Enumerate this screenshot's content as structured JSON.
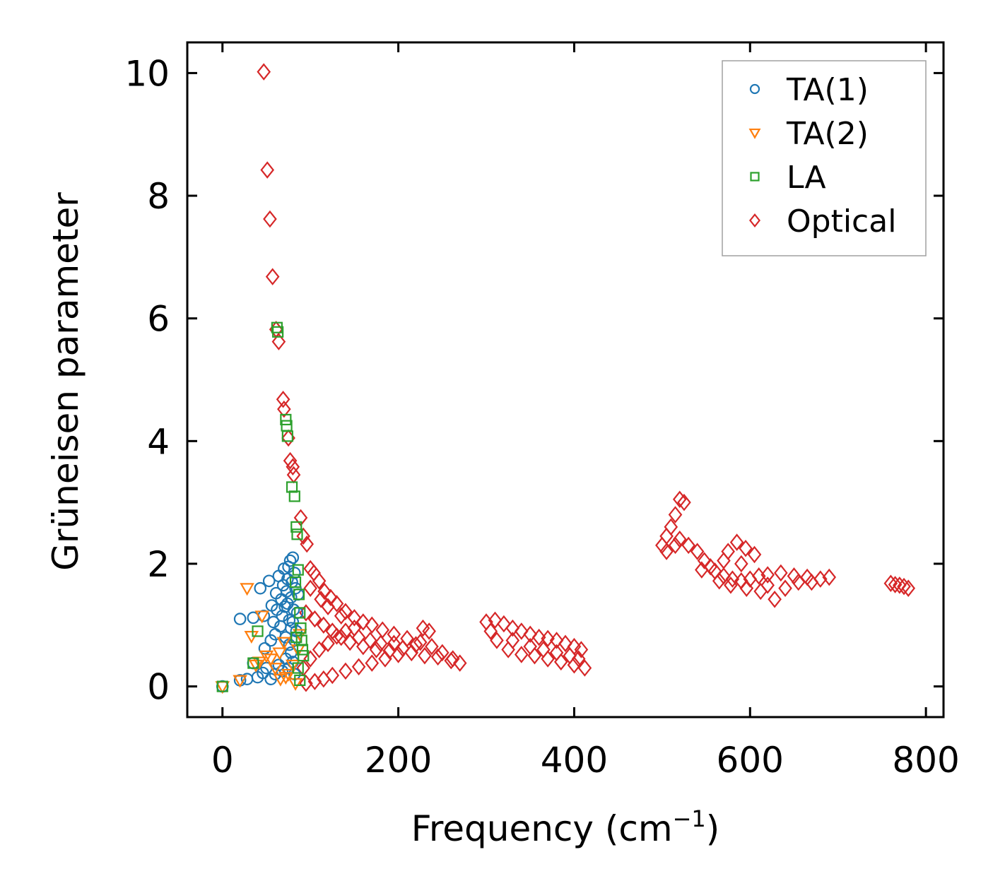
{
  "chart_data": {
    "type": "scatter",
    "title": "",
    "xlabel": "Frequency (cm",
    "xlabel_sup": "−1",
    "xlabel_close": ")",
    "ylabel": "Grüneisen parameter",
    "xlim": [
      -40,
      820
    ],
    "ylim": [
      -0.5,
      10.5
    ],
    "xticks": [
      0,
      200,
      400,
      600,
      800
    ],
    "yticks": [
      0,
      2,
      4,
      6,
      8,
      10
    ],
    "xtick_labels": [
      "0",
      "200",
      "400",
      "600",
      "800"
    ],
    "ytick_labels": [
      "0",
      "2",
      "4",
      "6",
      "8",
      "10"
    ],
    "grid": false,
    "legend_position": "top-right",
    "series": [
      {
        "name": "TA(1)",
        "marker": "circle",
        "color": "#1f77b4",
        "points": [
          [
            0,
            0
          ],
          [
            20,
            0.1
          ],
          [
            28,
            0.12
          ],
          [
            35,
            0.38
          ],
          [
            40,
            0.15
          ],
          [
            46,
            0.22
          ],
          [
            50,
            0.3
          ],
          [
            55,
            0.12
          ],
          [
            60,
            0.2
          ],
          [
            64,
            0.35
          ],
          [
            68,
            0.25
          ],
          [
            72,
            0.45
          ],
          [
            75,
            0.3
          ],
          [
            78,
            0.55
          ],
          [
            80,
            0.4
          ],
          [
            82,
            0.2
          ],
          [
            20,
            1.1
          ],
          [
            35,
            1.12
          ],
          [
            43,
            1.6
          ],
          [
            47,
            1.15
          ],
          [
            48,
            0.62
          ],
          [
            53,
            1.72
          ],
          [
            55,
            0.75
          ],
          [
            56,
            1.32
          ],
          [
            58,
            1.05
          ],
          [
            60,
            0.85
          ],
          [
            61,
            1.52
          ],
          [
            62,
            1.25
          ],
          [
            64,
            1.8
          ],
          [
            66,
            0.98
          ],
          [
            67,
            1.42
          ],
          [
            68,
            1.15
          ],
          [
            69,
            1.65
          ],
          [
            70,
            1.92
          ],
          [
            71,
            1.3
          ],
          [
            72,
            0.8
          ],
          [
            73,
            1.55
          ],
          [
            74,
            1.75
          ],
          [
            75,
            1.95
          ],
          [
            76,
            1.08
          ],
          [
            77,
            2.05
          ],
          [
            78,
            1.45
          ],
          [
            79,
            1.7
          ],
          [
            80,
            2.1
          ],
          [
            81,
            1.25
          ],
          [
            82,
            1.85
          ],
          [
            83,
            1.6
          ],
          [
            84,
            0.9
          ],
          [
            78,
            0.95
          ],
          [
            76,
            0.68
          ],
          [
            82,
            0.75
          ],
          [
            85,
            1.2
          ],
          [
            80,
            1.05
          ],
          [
            74,
            1.35
          ],
          [
            86,
            1.5
          ]
        ]
      },
      {
        "name": "TA(2)",
        "marker": "triangle-down",
        "color": "#ff7f0e",
        "points": [
          [
            0,
            0
          ],
          [
            20,
            0.1
          ],
          [
            28,
            1.6
          ],
          [
            33,
            0.82
          ],
          [
            38,
            0.35
          ],
          [
            42,
            0.4
          ],
          [
            45,
            1.15
          ],
          [
            50,
            0.5
          ],
          [
            55,
            0.45
          ],
          [
            60,
            0.3
          ],
          [
            65,
            0.55
          ],
          [
            70,
            0.72
          ],
          [
            75,
            0.2
          ],
          [
            80,
            0.35
          ],
          [
            83,
            0.05
          ],
          [
            86,
            0.6
          ],
          [
            88,
            0.85
          ],
          [
            72,
            0.15
          ],
          [
            66,
            0.12
          ]
        ]
      },
      {
        "name": "LA",
        "marker": "square",
        "color": "#2ca02c",
        "points": [
          [
            0,
            0
          ],
          [
            35,
            0.38
          ],
          [
            40,
            0.9
          ],
          [
            62,
            5.85
          ],
          [
            63,
            5.78
          ],
          [
            72,
            4.35
          ],
          [
            73,
            4.25
          ],
          [
            74,
            4.08
          ],
          [
            79,
            3.25
          ],
          [
            82,
            3.1
          ],
          [
            84,
            2.6
          ],
          [
            85,
            2.48
          ],
          [
            86,
            1.9
          ],
          [
            87,
            1.5
          ],
          [
            88,
            1.2
          ],
          [
            89,
            0.95
          ],
          [
            90,
            0.75
          ],
          [
            91,
            0.6
          ],
          [
            92,
            0.5
          ],
          [
            86,
            0.3
          ],
          [
            88,
            0.1
          ],
          [
            84,
            0.8
          ],
          [
            83,
            1.7
          ]
        ]
      },
      {
        "name": "Optical",
        "marker": "diamond",
        "color": "#d62728",
        "points": [
          [
            47,
            10.02
          ],
          [
            51,
            8.42
          ],
          [
            54,
            7.62
          ],
          [
            57,
            6.68
          ],
          [
            61,
            5.82
          ],
          [
            64,
            5.62
          ],
          [
            69,
            4.68
          ],
          [
            70,
            4.52
          ],
          [
            75,
            4.05
          ],
          [
            77,
            3.68
          ],
          [
            80,
            3.58
          ],
          [
            81,
            3.45
          ],
          [
            89,
            2.75
          ],
          [
            92,
            2.45
          ],
          [
            96,
            2.32
          ],
          [
            100,
            1.92
          ],
          [
            104,
            1.85
          ],
          [
            110,
            1.72
          ],
          [
            116,
            1.55
          ],
          [
            123,
            1.45
          ],
          [
            130,
            1.35
          ],
          [
            140,
            1.22
          ],
          [
            150,
            1.12
          ],
          [
            160,
            1.05
          ],
          [
            170,
            1.0
          ],
          [
            182,
            0.92
          ],
          [
            195,
            0.85
          ],
          [
            210,
            0.78
          ],
          [
            225,
            0.72
          ],
          [
            238,
            0.65
          ],
          [
            250,
            0.55
          ],
          [
            262,
            0.45
          ],
          [
            270,
            0.38
          ],
          [
            95,
            0.05
          ],
          [
            105,
            0.08
          ],
          [
            115,
            0.12
          ],
          [
            125,
            0.18
          ],
          [
            140,
            0.25
          ],
          [
            155,
            0.32
          ],
          [
            170,
            0.38
          ],
          [
            185,
            0.45
          ],
          [
            200,
            0.52
          ],
          [
            215,
            0.55
          ],
          [
            230,
            0.5
          ],
          [
            245,
            0.48
          ],
          [
            260,
            0.42
          ],
          [
            92,
            0.3
          ],
          [
            100,
            0.45
          ],
          [
            110,
            0.6
          ],
          [
            120,
            0.7
          ],
          [
            130,
            0.82
          ],
          [
            140,
            0.9
          ],
          [
            150,
            0.95
          ],
          [
            95,
            1.2
          ],
          [
            105,
            1.1
          ],
          [
            115,
            1.0
          ],
          [
            125,
            0.9
          ],
          [
            135,
            0.8
          ],
          [
            145,
            0.72
          ],
          [
            160,
            0.65
          ],
          [
            175,
            0.6
          ],
          [
            190,
            0.58
          ],
          [
            205,
            0.62
          ],
          [
            220,
            0.68
          ],
          [
            235,
            0.9
          ],
          [
            228,
            0.95
          ],
          [
            120,
            1.3
          ],
          [
            100,
            1.6
          ],
          [
            112,
            1.42
          ],
          [
            135,
            1.15
          ],
          [
            155,
            0.8
          ],
          [
            168,
            0.75
          ],
          [
            180,
            0.7
          ],
          [
            195,
            0.7
          ],
          [
            300,
            1.05
          ],
          [
            310,
            1.08
          ],
          [
            320,
            1.02
          ],
          [
            330,
            0.95
          ],
          [
            340,
            0.9
          ],
          [
            350,
            0.85
          ],
          [
            360,
            0.8
          ],
          [
            370,
            0.78
          ],
          [
            380,
            0.75
          ],
          [
            390,
            0.7
          ],
          [
            400,
            0.65
          ],
          [
            408,
            0.6
          ],
          [
            412,
            0.3
          ],
          [
            400,
            0.35
          ],
          [
            385,
            0.4
          ],
          [
            370,
            0.45
          ],
          [
            355,
            0.5
          ],
          [
            340,
            0.52
          ],
          [
            325,
            0.6
          ],
          [
            312,
            0.75
          ],
          [
            305,
            0.9
          ],
          [
            330,
            0.75
          ],
          [
            350,
            0.65
          ],
          [
            365,
            0.6
          ],
          [
            380,
            0.55
          ],
          [
            395,
            0.5
          ],
          [
            405,
            0.45
          ],
          [
            500,
            2.3
          ],
          [
            505,
            2.45
          ],
          [
            510,
            2.6
          ],
          [
            515,
            2.8
          ],
          [
            520,
            3.05
          ],
          [
            525,
            3.0
          ],
          [
            515,
            2.3
          ],
          [
            505,
            2.2
          ],
          [
            520,
            2.4
          ],
          [
            530,
            2.3
          ],
          [
            540,
            2.2
          ],
          [
            548,
            2.05
          ],
          [
            555,
            1.95
          ],
          [
            560,
            1.88
          ],
          [
            570,
            1.8
          ],
          [
            580,
            1.75
          ],
          [
            590,
            1.72
          ],
          [
            600,
            1.75
          ],
          [
            610,
            1.8
          ],
          [
            620,
            1.82
          ],
          [
            635,
            1.85
          ],
          [
            650,
            1.8
          ],
          [
            665,
            1.78
          ],
          [
            680,
            1.75
          ],
          [
            690,
            1.78
          ],
          [
            575,
            2.2
          ],
          [
            585,
            2.35
          ],
          [
            595,
            2.25
          ],
          [
            605,
            2.15
          ],
          [
            570,
            2.05
          ],
          [
            590,
            2.0
          ],
          [
            565,
            1.72
          ],
          [
            578,
            1.65
          ],
          [
            596,
            1.6
          ],
          [
            612,
            1.55
          ],
          [
            628,
            1.42
          ],
          [
            620,
            1.65
          ],
          [
            640,
            1.6
          ],
          [
            655,
            1.7
          ],
          [
            670,
            1.7
          ],
          [
            545,
            1.9
          ],
          [
            760,
            1.68
          ],
          [
            765,
            1.66
          ],
          [
            770,
            1.65
          ],
          [
            775,
            1.63
          ],
          [
            780,
            1.6
          ]
        ]
      }
    ]
  }
}
